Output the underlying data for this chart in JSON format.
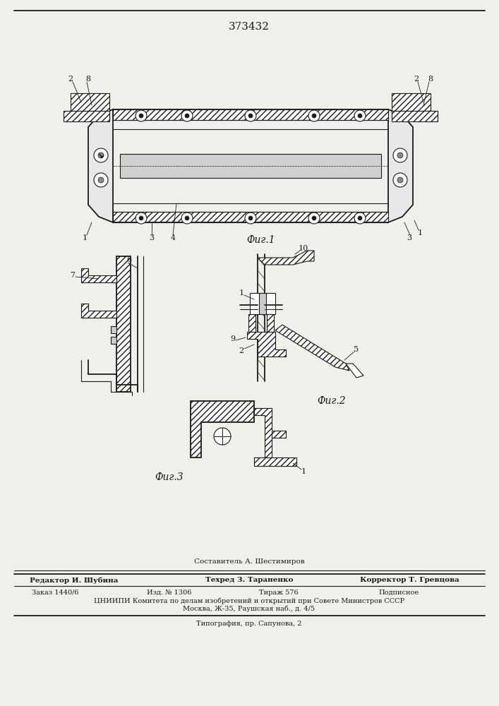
{
  "patent_number": "373432",
  "fig1_label": "Фиг.1",
  "fig2_label": "Фиг.2",
  "fig3_label": "Фиг.3",
  "footer_compiler": "Составитель А. Шестимиров",
  "footer_editor": "Редактор И. Шубина",
  "footer_techred": "Техред З. Тараненко",
  "footer_corrector": "Корректор Т. Гревцова",
  "footer_order": "Заказ 1440/6",
  "footer_izd": "Изд. № 1306",
  "footer_tirazh": "Тираж 576",
  "footer_podpisnoe": "Подписное",
  "footer_tsniip": "ЦНИИПИ Комитета по делам изобретений и открытий при Совете Министров СССР",
  "footer_address": "Москва, Ж-35, Раушская наб., д. 4/5",
  "footer_tipografia": "Типография, пр. Сапунова, 2",
  "bg_color": "#f0f0eb",
  "line_color": "#1a1a1a"
}
